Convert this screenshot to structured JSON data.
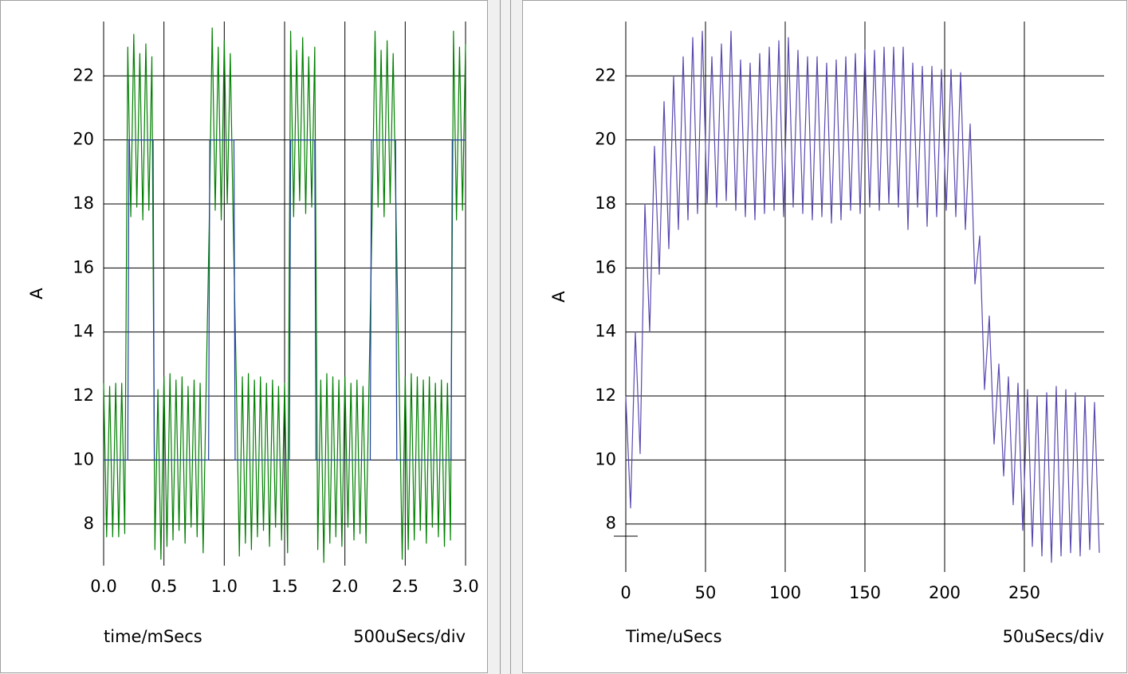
{
  "chart_data": [
    {
      "type": "line",
      "y_label": "A",
      "x_label": "time/mSecs",
      "scale_label": "500uSecs/div",
      "xlim": [
        0,
        3
      ],
      "ylim": [
        6.7,
        23.7
      ],
      "xticks": [
        {
          "value": 0,
          "label": "0.0"
        },
        0.5,
        {
          "value": 1,
          "label": "1.0"
        },
        1.5,
        {
          "value": 2,
          "label": "2.0"
        },
        2.5,
        {
          "value": 3,
          "label": "3.0"
        }
      ],
      "yticks": [
        8,
        10,
        12,
        14,
        16,
        18,
        20,
        22
      ],
      "grid": true,
      "series": [
        {
          "color": "#008000",
          "x": [
            0,
            0.025,
            0.05,
            0.075,
            0.1,
            0.125,
            0.15,
            0.175,
            0.2,
            0.225,
            0.25,
            0.275,
            0.3,
            0.325,
            0.35,
            0.375,
            0.4,
            0.425,
            0.45,
            0.475,
            0.5,
            0.525,
            0.55,
            0.575,
            0.6,
            0.625,
            0.65,
            0.675,
            0.7,
            0.725,
            0.75,
            0.775,
            0.8,
            0.825,
            0.85,
            0.875,
            0.9,
            0.925,
            0.95,
            0.975,
            1,
            1.025,
            1.05,
            1.075,
            1.1,
            1.125,
            1.15,
            1.175,
            1.2,
            1.225,
            1.25,
            1.275,
            1.3,
            1.325,
            1.35,
            1.375,
            1.4,
            1.425,
            1.45,
            1.475,
            1.5,
            1.525,
            1.55,
            1.575,
            1.6,
            1.625,
            1.65,
            1.675,
            1.7,
            1.725,
            1.75,
            1.775,
            1.8,
            1.825,
            1.85,
            1.875,
            1.9,
            1.925,
            1.95,
            1.975,
            2,
            2.025,
            2.05,
            2.075,
            2.1,
            2.125,
            2.15,
            2.175,
            2.2,
            2.225,
            2.25,
            2.275,
            2.3,
            2.325,
            2.35,
            2.375,
            2.4,
            2.425,
            2.45,
            2.475,
            2.5,
            2.525,
            2.55,
            2.575,
            2.6,
            2.625,
            2.65,
            2.675,
            2.7,
            2.725,
            2.75,
            2.775,
            2.8,
            2.825,
            2.85,
            2.875,
            2.9,
            2.925,
            2.95,
            2.975,
            3
          ],
          "values": [
            12.4,
            7.6,
            12.3,
            7.6,
            12.4,
            7.6,
            12.4,
            7.7,
            22.9,
            17.6,
            23.3,
            17.9,
            22.7,
            17.5,
            23.0,
            17.8,
            22.6,
            7.2,
            12.2,
            6.9,
            12.6,
            7.3,
            12.7,
            7.5,
            12.5,
            7.8,
            12.6,
            7.4,
            12.3,
            7.9,
            12.5,
            7.6,
            12.4,
            7.1,
            12.3,
            17.3,
            23.5,
            17.8,
            22.9,
            17.5,
            23.1,
            18.0,
            22.7,
            17.2,
            12.4,
            7.0,
            12.6,
            7.4,
            12.7,
            7.2,
            12.5,
            7.6,
            12.6,
            7.8,
            12.4,
            7.3,
            12.5,
            7.9,
            12.3,
            7.5,
            12.4,
            7.1,
            23.4,
            17.6,
            22.8,
            18.1,
            23.2,
            17.7,
            22.6,
            17.9,
            22.9,
            7.2,
            12.5,
            6.8,
            12.7,
            7.4,
            12.6,
            7.6,
            12.5,
            7.3,
            12.6,
            7.9,
            12.4,
            7.5,
            12.5,
            7.7,
            12.3,
            7.4,
            12.4,
            17.5,
            23.4,
            17.9,
            22.8,
            17.6,
            23.1,
            18.0,
            22.7,
            17.4,
            12.3,
            6.9,
            12.6,
            7.2,
            12.7,
            7.5,
            12.6,
            7.8,
            12.5,
            7.4,
            12.6,
            7.9,
            12.4,
            7.6,
            12.5,
            7.3,
            12.4,
            7.5,
            23.4,
            17.5,
            22.9,
            17.8,
            23.0
          ]
        },
        {
          "color": "#1f3fa0",
          "x": [
            0,
            0.2,
            0.21,
            0.41,
            0.42,
            0.87,
            0.88,
            1.08,
            1.09,
            1.54,
            1.55,
            1.75,
            1.76,
            2.21,
            2.22,
            2.42,
            2.43,
            2.88,
            2.89,
            3
          ],
          "values": [
            10,
            10,
            20,
            20,
            10,
            10,
            20,
            20,
            10,
            10,
            20,
            20,
            10,
            10,
            20,
            20,
            10,
            10,
            20,
            20
          ]
        }
      ]
    },
    {
      "type": "line",
      "y_label": "A",
      "x_label": "Time/uSecs",
      "scale_label": "50uSecs/div",
      "xlim": [
        0,
        300
      ],
      "ylim": [
        6.5,
        23.7
      ],
      "xticks": [
        0,
        50,
        100,
        150,
        200,
        250
      ],
      "yticks": [
        8,
        10,
        12,
        14,
        16,
        18,
        20,
        22
      ],
      "grid": true,
      "series": [
        {
          "color": "#5a48b0",
          "x": [
            0,
            3,
            6,
            9,
            12,
            15,
            18,
            21,
            24,
            27,
            30,
            33,
            36,
            39,
            42,
            45,
            48,
            51,
            54,
            57,
            60,
            63,
            66,
            69,
            72,
            75,
            78,
            81,
            84,
            87,
            90,
            93,
            96,
            99,
            102,
            105,
            108,
            111,
            114,
            117,
            120,
            123,
            126,
            129,
            132,
            135,
            138,
            141,
            144,
            147,
            150,
            153,
            156,
            159,
            162,
            165,
            168,
            171,
            174,
            177,
            180,
            183,
            186,
            189,
            192,
            195,
            198,
            201,
            204,
            207,
            210,
            213,
            216,
            219,
            222,
            225,
            228,
            231,
            234,
            237,
            240,
            243,
            246,
            249,
            252,
            255,
            258,
            261,
            264,
            267,
            270,
            273,
            276,
            279,
            282,
            285,
            288,
            291,
            294,
            297
          ],
          "values": [
            12.0,
            8.5,
            14.0,
            10.2,
            18.0,
            14.0,
            19.8,
            15.8,
            21.2,
            16.6,
            22.0,
            17.2,
            22.6,
            17.5,
            23.2,
            17.7,
            23.4,
            18.0,
            22.6,
            17.9,
            23.0,
            18.1,
            23.4,
            17.8,
            22.5,
            17.6,
            22.4,
            17.5,
            22.7,
            17.7,
            22.9,
            17.8,
            23.1,
            17.6,
            23.2,
            17.9,
            22.8,
            17.7,
            22.6,
            17.5,
            22.6,
            17.6,
            22.4,
            17.4,
            22.5,
            17.5,
            22.6,
            17.8,
            22.7,
            17.7,
            22.8,
            17.9,
            22.8,
            17.8,
            22.9,
            18.0,
            22.9,
            17.9,
            22.9,
            17.2,
            22.4,
            17.9,
            22.3,
            17.3,
            22.3,
            17.6,
            22.2,
            17.8,
            22.2,
            17.6,
            22.1,
            17.2,
            20.5,
            15.5,
            17.0,
            12.2,
            14.5,
            10.5,
            13.0,
            9.5,
            12.6,
            8.6,
            12.4,
            7.8,
            12.2,
            7.3,
            12.0,
            7.0,
            12.1,
            6.8,
            12.3,
            7.0,
            12.2,
            7.1,
            12.1,
            7.0,
            12.0,
            7.2,
            11.8,
            7.1
          ]
        }
      ]
    }
  ]
}
